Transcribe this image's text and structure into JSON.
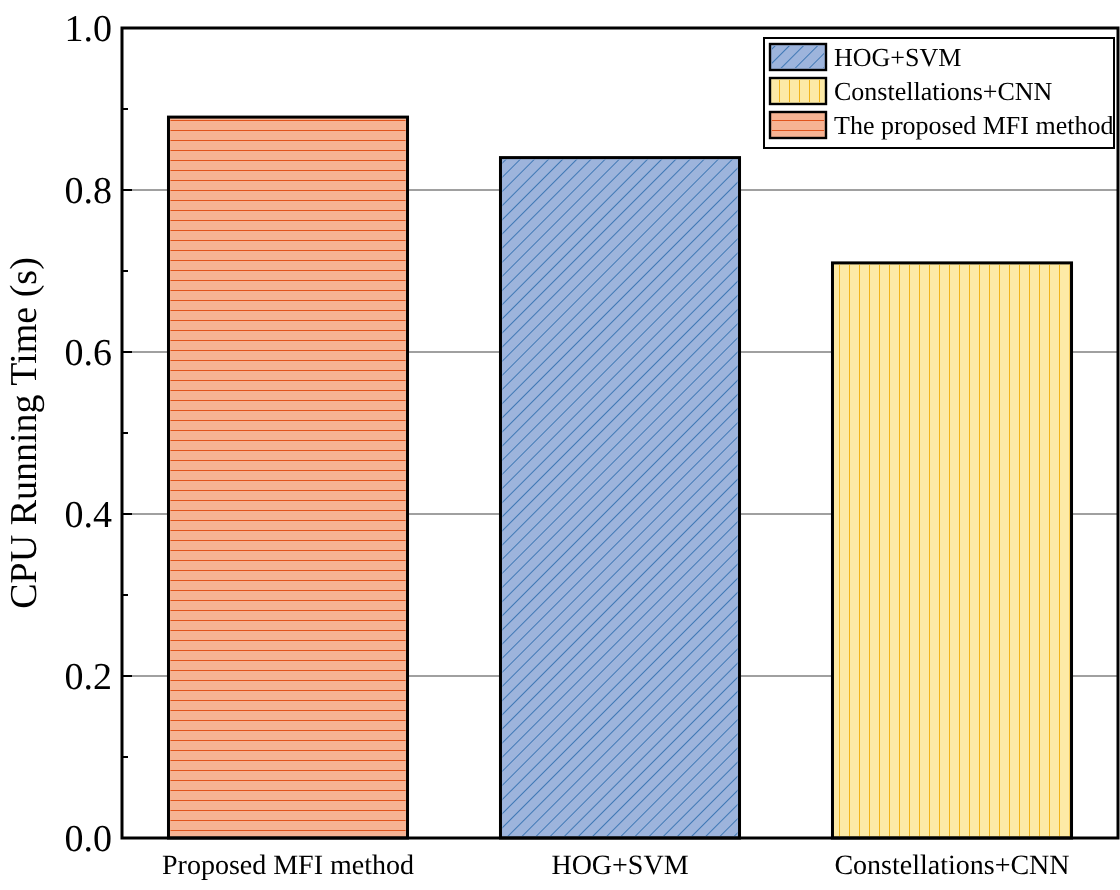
{
  "chart_data": {
    "type": "bar",
    "ylabel": "CPU Running Time (s)",
    "categories": [
      "Proposed MFI method",
      "HOG+SVM",
      "Constellations+CNN"
    ],
    "series": [
      {
        "name": "HOG+SVM",
        "color": "#9db4dc",
        "values": [
          null,
          0.84,
          null
        ]
      },
      {
        "name": "Constellations+CNN",
        "color": "#fdeaa6",
        "values": [
          null,
          null,
          0.71
        ]
      },
      {
        "name": "The proposed MFI method",
        "color": "#f6b393",
        "values": [
          0.89,
          null,
          null
        ]
      }
    ],
    "ylim": [
      0,
      1
    ],
    "yticks": [
      {
        "value": 0,
        "label": "0.0"
      },
      {
        "value": 0.1,
        "label": null
      },
      0.2,
      {
        "value": 0.3,
        "label": null
      },
      0.4,
      {
        "value": 0.5,
        "label": null
      },
      0.6,
      {
        "value": 0.7,
        "label": null
      },
      0.8,
      {
        "value": 0.9,
        "label": null
      },
      {
        "value": 1,
        "label": "1.0"
      }
    ],
    "grid": "y",
    "legend": "top right"
  }
}
